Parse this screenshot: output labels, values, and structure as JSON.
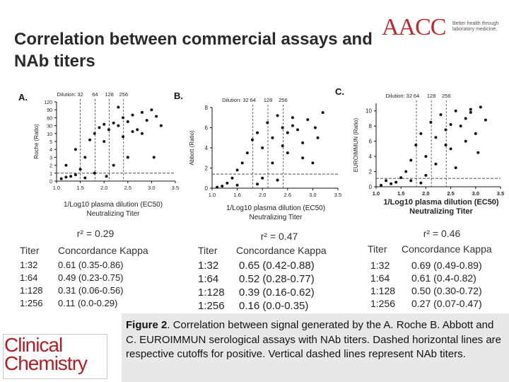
{
  "slide": {
    "title": "Correlation between commercial assays and NAb titers",
    "logo": {
      "text": "AACC",
      "tagline": "Better health through laboratory medicine."
    },
    "journal_logo": "Clinical Chemistry"
  },
  "colors": {
    "logo_red": "#c0282e",
    "caption_bg": "#e8e8e8",
    "marker": "#111111"
  },
  "panels": [
    {
      "letter": "A.",
      "r2": "r² = 0.29",
      "xcaption": "1/Log10 plasma dilution (EC50) Neutralizing Titer"
    },
    {
      "letter": "B.",
      "r2": "r² = 0.47",
      "xcaption": "1/Log10 plasma dilution (EC50) Neutralizing Titer"
    },
    {
      "letter": "C.",
      "r2": "r² = 0.46",
      "xcaption": "1/Log10 plasma dilution (EC50) Neutralizing Titer"
    }
  ],
  "tables": [
    {
      "header": [
        "Titer",
        "Concordance Kappa"
      ],
      "rows": [
        [
          "1:32",
          "0.61 (0.35-0.86)"
        ],
        [
          "1:64",
          "0.49 (0.23-0.75)"
        ],
        [
          "1:128",
          "0.31 (0.06-0.56)"
        ],
        [
          "1:256",
          "0.11 (0.0-0.29)"
        ]
      ]
    },
    {
      "header": [
        "Titer",
        "Concordance Kappa"
      ],
      "rows": [
        [
          "1:32",
          "0.65 (0.42-0.88)"
        ],
        [
          "1:64",
          "0.52 (0.28-0.77)"
        ],
        [
          "1:128",
          "0.39 (0.16-0.62)"
        ],
        [
          "1:256",
          "0.16 (0.0-0.35)"
        ]
      ]
    },
    {
      "header": [
        "Titer",
        "Concordance Kappa"
      ],
      "rows": [
        [
          "1:32",
          "0.69 (0.49-0.89)"
        ],
        [
          "1:64",
          "0.61 (0.4-0.82)"
        ],
        [
          "1:128",
          "0.50 (0.30-0.72)"
        ],
        [
          "1:256",
          "0.27 (0.07-0.47)"
        ]
      ]
    }
  ],
  "caption": {
    "label": "Figure 2",
    "text": ". Correlation between signal generated by the A. Roche B. Abbott and C. EUROIMMUN serological assays with NAb titers. Dashed horizontal lines are respective cutoffs for positive. Vertical dashed lines represent NAb titers."
  },
  "chart_data": [
    {
      "type": "scatter",
      "ylabel": "Roche (Ratio)",
      "xlim": [
        1.0,
        3.5
      ],
      "xticks": [
        "1.0",
        "1.5",
        "2.0",
        "2.5",
        "3.0",
        "3.5"
      ],
      "yticks": [
        "0",
        "1",
        "2",
        "3",
        "4",
        "5",
        "10",
        "30",
        "60",
        "90",
        "120"
      ],
      "dilution_label": "Dilution:",
      "dilution_ticks": [
        {
          "label": "32",
          "x": 1.5
        },
        {
          "label": "64",
          "x": 1.81
        },
        {
          "label": "128",
          "x": 2.11
        },
        {
          "label": "256",
          "x": 2.41
        }
      ],
      "cutoff_y": "1",
      "points": [
        [
          1.1,
          "0.3"
        ],
        [
          1.2,
          "0.5"
        ],
        [
          1.3,
          "0.6"
        ],
        [
          1.4,
          "0.8"
        ],
        [
          1.5,
          "1.5"
        ],
        [
          1.2,
          "2"
        ],
        [
          1.4,
          "4"
        ],
        [
          1.6,
          "3"
        ],
        [
          1.7,
          "6"
        ],
        [
          1.8,
          "10"
        ],
        [
          1.9,
          "25"
        ],
        [
          2.0,
          "35"
        ],
        [
          2.1,
          "20"
        ],
        [
          2.2,
          "40"
        ],
        [
          2.3,
          "30"
        ],
        [
          2.4,
          "60"
        ],
        [
          2.5,
          "45"
        ],
        [
          2.6,
          "70"
        ],
        [
          2.7,
          "20"
        ],
        [
          2.8,
          "80"
        ],
        [
          2.9,
          "50"
        ],
        [
          3.0,
          "90"
        ],
        [
          3.1,
          "65"
        ],
        [
          3.2,
          "30"
        ],
        [
          2.0,
          "5"
        ],
        [
          2.2,
          "2"
        ],
        [
          2.4,
          "8"
        ],
        [
          2.6,
          "15"
        ],
        [
          1.8,
          "1"
        ],
        [
          2.05,
          "0.6"
        ],
        [
          2.5,
          "3"
        ],
        [
          2.8,
          "10"
        ],
        [
          3.05,
          "3"
        ],
        [
          1.6,
          "0.4"
        ],
        [
          2.3,
          "100"
        ]
      ]
    },
    {
      "type": "scatter",
      "ylabel": "Abbott (Ratio)",
      "xlim": [
        1.0,
        3.5
      ],
      "ylim": [
        0,
        8
      ],
      "xticks": [
        "1.0",
        "1.6",
        "2.0",
        "2.6",
        "3.0",
        "3.5"
      ],
      "yticks": [
        "0",
        "2",
        "4",
        "6",
        "8"
      ],
      "dilution_label": "Dilution: 32",
      "dilution_ticks": [
        {
          "label": "64",
          "x": 1.81
        },
        {
          "label": "128",
          "x": 2.11
        },
        {
          "label": "256",
          "x": 2.41
        }
      ],
      "cutoff_y": 1.4,
      "points": [
        [
          1.1,
          0.1
        ],
        [
          1.2,
          0.2
        ],
        [
          1.3,
          0.5
        ],
        [
          1.4,
          1.0
        ],
        [
          1.5,
          1.8
        ],
        [
          1.6,
          2.5
        ],
        [
          1.7,
          3.5
        ],
        [
          1.8,
          4.8
        ],
        [
          1.9,
          5.5
        ],
        [
          2.0,
          4.0
        ],
        [
          2.1,
          6.5
        ],
        [
          2.2,
          5.0
        ],
        [
          2.3,
          7.2
        ],
        [
          2.4,
          6.0
        ],
        [
          2.5,
          3.5
        ],
        [
          2.6,
          7.0
        ],
        [
          2.7,
          5.8
        ],
        [
          2.8,
          4.5
        ],
        [
          2.9,
          6.8
        ],
        [
          3.0,
          2.5
        ],
        [
          3.1,
          5.0
        ],
        [
          3.2,
          7.5
        ],
        [
          2.0,
          1.0
        ],
        [
          2.2,
          2.5
        ],
        [
          2.4,
          4.2
        ],
        [
          2.6,
          6.2
        ],
        [
          1.9,
          0.4
        ],
        [
          2.3,
          0.8
        ],
        [
          2.8,
          3.0
        ],
        [
          3.05,
          6.0
        ],
        [
          1.5,
          0.3
        ],
        [
          2.5,
          5.5
        ]
      ]
    },
    {
      "type": "scatter",
      "ylabel": "EUROIMMUN (Ratio)",
      "xlabel": "1/Log10 plasma dilution (EC50) Neutralizing Titer",
      "xlim": [
        1.0,
        3.5
      ],
      "ylim": [
        0,
        11
      ],
      "xticks": [
        "1.0",
        "1.5",
        "2.0",
        "2.5",
        "3.0",
        "3.5"
      ],
      "yticks": [
        "0",
        "2",
        "4",
        "6",
        "8",
        "10"
      ],
      "dilution_label": "Dilution: 32",
      "dilution_ticks": [
        {
          "label": "64",
          "x": 1.81
        },
        {
          "label": "128",
          "x": 2.11
        },
        {
          "label": "256",
          "x": 2.41
        }
      ],
      "cutoff_y": 1.1,
      "points": [
        [
          1.1,
          0.2
        ],
        [
          1.2,
          0.8
        ],
        [
          1.3,
          0.4
        ],
        [
          1.4,
          0.6
        ],
        [
          1.5,
          1.2
        ],
        [
          1.6,
          2.0
        ],
        [
          1.7,
          3.5
        ],
        [
          1.8,
          5.5
        ],
        [
          1.9,
          7.0
        ],
        [
          2.0,
          4.0
        ],
        [
          2.1,
          8.5
        ],
        [
          2.2,
          6.5
        ],
        [
          2.3,
          9.5
        ],
        [
          2.4,
          7.5
        ],
        [
          2.5,
          5.0
        ],
        [
          2.6,
          10.0
        ],
        [
          2.7,
          8.0
        ],
        [
          2.8,
          6.0
        ],
        [
          2.9,
          9.8
        ],
        [
          3.0,
          7.0
        ],
        [
          3.1,
          10.5
        ],
        [
          3.2,
          8.8
        ],
        [
          2.0,
          1.5
        ],
        [
          2.2,
          3.0
        ],
        [
          2.4,
          5.5
        ],
        [
          1.9,
          0.5
        ],
        [
          2.6,
          2.5
        ],
        [
          2.8,
          9.0
        ],
        [
          3.05,
          4.5
        ],
        [
          1.7,
          0.8
        ],
        [
          2.5,
          8.2
        ],
        [
          2.9,
          10.2
        ]
      ]
    }
  ]
}
